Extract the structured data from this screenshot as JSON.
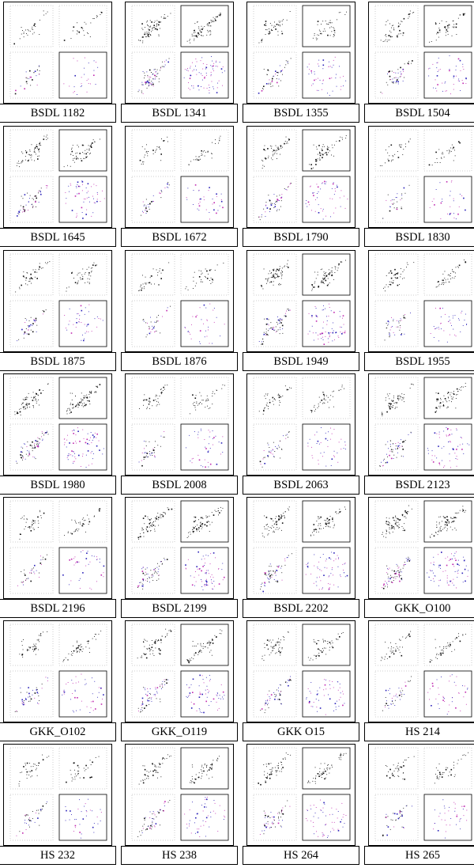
{
  "figure": {
    "columns": 4,
    "rows": 7,
    "colors": {
      "cmd_points": "#111111",
      "member_points": "#2a20b8",
      "field_points": "#c02ab0",
      "frame": "#000000",
      "axis": "#9a9a9a"
    },
    "clusters": [
      {
        "name": "BSDL 1182",
        "density": 0.25
      },
      {
        "name": "BSDL 1341",
        "density": 0.95
      },
      {
        "name": "BSDL 1355",
        "density": 0.55
      },
      {
        "name": "BSDL 1504",
        "density": 0.55
      },
      {
        "name": "BSDL 1645",
        "density": 0.65
      },
      {
        "name": "BSDL 1672",
        "density": 0.35
      },
      {
        "name": "BSDL 1790",
        "density": 0.6
      },
      {
        "name": "BSDL 1830",
        "density": 0.3
      },
      {
        "name": "BSDL 1875",
        "density": 0.45
      },
      {
        "name": "BSDL 1876",
        "density": 0.35
      },
      {
        "name": "BSDL 1949",
        "density": 0.85
      },
      {
        "name": "BSDL 1955",
        "density": 0.45
      },
      {
        "name": "BSDL 1980",
        "density": 0.9
      },
      {
        "name": "BSDL 2008",
        "density": 0.45
      },
      {
        "name": "BSDL 2063",
        "density": 0.45
      },
      {
        "name": "BSDL 2123",
        "density": 0.7
      },
      {
        "name": "BSDL 2196",
        "density": 0.4
      },
      {
        "name": "BSDL 2199",
        "density": 0.8
      },
      {
        "name": "BSDL 2202",
        "density": 0.75
      },
      {
        "name": "GKK_O100",
        "density": 0.95
      },
      {
        "name": "GKK_O102",
        "density": 0.5
      },
      {
        "name": "GKK_O119",
        "density": 0.7
      },
      {
        "name": "GKK O15",
        "density": 0.6
      },
      {
        "name": "HS 214",
        "density": 0.45
      },
      {
        "name": "HS 232",
        "density": 0.35
      },
      {
        "name": "HS 238",
        "density": 0.55
      },
      {
        "name": "HS 264",
        "density": 0.65
      },
      {
        "name": "HS 265",
        "density": 0.4
      }
    ]
  }
}
